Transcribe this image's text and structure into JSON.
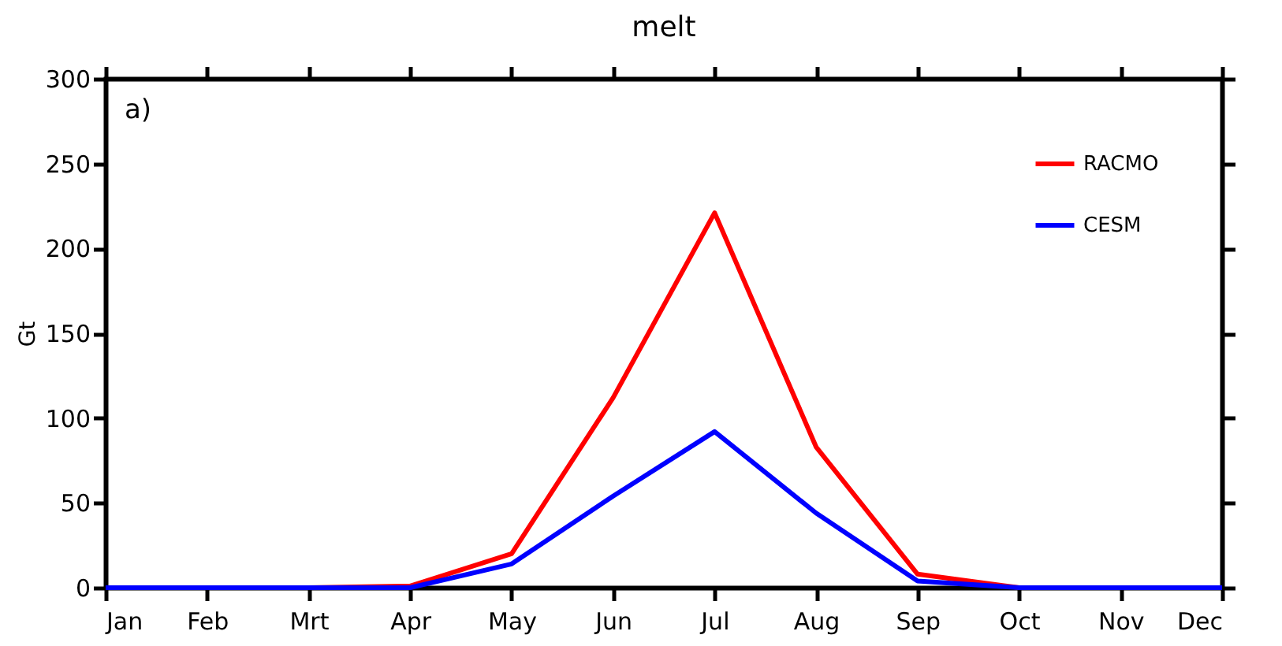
{
  "chart_data": {
    "type": "line",
    "title": "melt",
    "ylabel": "Gt",
    "categories": [
      "Jan",
      "Feb",
      "Mrt",
      "Apr",
      "May",
      "Jun",
      "Jul",
      "Aug",
      "Sep",
      "Oct",
      "Nov",
      "Dec"
    ],
    "series": [
      {
        "name": "RACMO",
        "color": "#ff0000",
        "values": [
          0,
          0,
          0,
          1,
          20,
          112,
          221,
          83,
          8,
          0,
          0,
          0
        ]
      },
      {
        "name": "CESM",
        "color": "#0000ff",
        "values": [
          0,
          0,
          0,
          0,
          14,
          54,
          92,
          44,
          4,
          0,
          0,
          0
        ]
      }
    ],
    "ylim": [
      0,
      300
    ],
    "yticks": [
      0,
      50,
      100,
      150,
      200,
      250,
      300
    ],
    "annotations": [
      "a)"
    ],
    "grid": false,
    "legend": "top right",
    "marker": "none",
    "line_style": "solid"
  }
}
